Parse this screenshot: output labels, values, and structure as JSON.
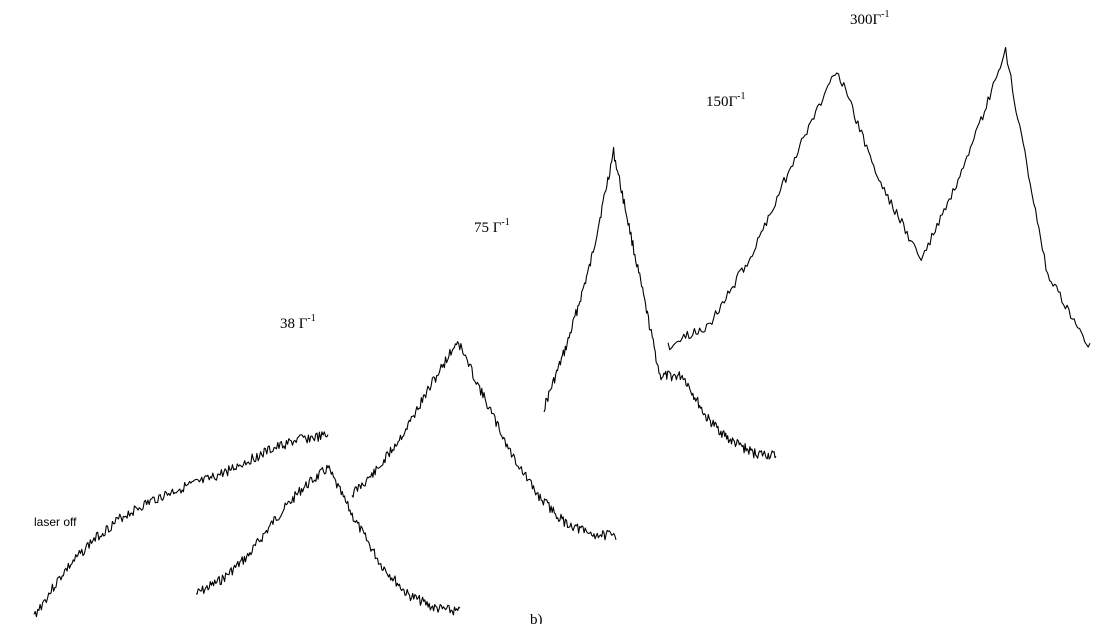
{
  "chart_data": {
    "type": "line",
    "title": "",
    "xlabel": "",
    "ylabel": "",
    "grid": false,
    "annotations": {
      "laser_off": "laser off",
      "panel_label": "b)",
      "fluences": [
        {
          "value": "38 Γ",
          "exponent": "-1"
        },
        {
          "value": "75 Γ",
          "exponent": "-1"
        },
        {
          "value": "150Γ",
          "exponent": "-1"
        },
        {
          "value": "300Γ",
          "exponent": "-1"
        }
      ]
    },
    "series": [
      {
        "id": "laser-off",
        "x": [
          0,
          0.1,
          0.2,
          0.3,
          0.4,
          0.5,
          0.6,
          0.7,
          0.8,
          0.9,
          1.0
        ],
        "y": [
          0.0,
          0.24,
          0.42,
          0.55,
          0.64,
          0.71,
          0.76,
          0.84,
          0.92,
          0.98,
          1.0
        ]
      },
      {
        "id": "38",
        "x": [
          0,
          0.1,
          0.2,
          0.3,
          0.4,
          0.5,
          0.6,
          0.7,
          0.8,
          0.9,
          1.0
        ],
        "y": [
          0.12,
          0.22,
          0.38,
          0.62,
          0.82,
          0.96,
          0.62,
          0.32,
          0.12,
          0.03,
          0.0
        ]
      },
      {
        "id": "75",
        "x": [
          0,
          0.1,
          0.2,
          0.3,
          0.4,
          0.5,
          0.6,
          0.7,
          0.8,
          0.9,
          1.0
        ],
        "y": [
          0.2,
          0.32,
          0.5,
          0.72,
          0.93,
          0.66,
          0.4,
          0.2,
          0.07,
          0.01,
          0.0
        ]
      },
      {
        "id": "150",
        "x": [
          0,
          0.1,
          0.2,
          0.3,
          0.4,
          0.5,
          0.6,
          0.7,
          0.8,
          0.9,
          1.0
        ],
        "y": [
          0.15,
          0.35,
          0.6,
          0.95,
          0.6,
          0.25,
          0.25,
          0.12,
          0.05,
          0.01,
          0.0
        ]
      },
      {
        "id": "300",
        "x": [
          0,
          0.1,
          0.2,
          0.3,
          0.4,
          0.5,
          0.6,
          0.7,
          0.8,
          0.9,
          1.0
        ],
        "y": [
          0.03,
          0.1,
          0.32,
          0.62,
          0.9,
          0.55,
          0.3,
          0.58,
          0.95,
          0.25,
          0.03
        ]
      }
    ]
  }
}
